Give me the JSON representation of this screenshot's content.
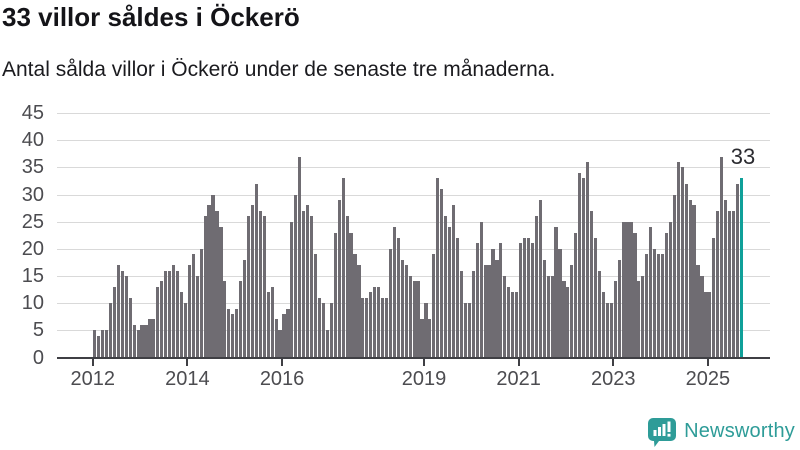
{
  "header": {
    "title": "33 villor såldes i Öckerö",
    "subtitle": "Antal sålda villor i Öckerö under de senaste tre månaderna."
  },
  "annotation": {
    "last_value_label": "33"
  },
  "branding": {
    "wordmark": "Newsworthy",
    "icon": "newsworthy-speech-bubble-barchart-icon",
    "color": "#2e9c98"
  },
  "chart_data": {
    "type": "bar",
    "title": "33 villor såldes i Öckerö",
    "subtitle": "Antal sålda villor i Öckerö under de senaste tre månaderna.",
    "x_start_month": "2012-01",
    "x_end_month": "2025-09",
    "x_tick_years": [
      2012,
      2014,
      2016,
      2019,
      2021,
      2023,
      2025
    ],
    "y_ticks": [
      0,
      5,
      10,
      15,
      20,
      25,
      30,
      35,
      40,
      45
    ],
    "ylim": [
      0,
      45
    ],
    "grid": true,
    "bar_color": "#6f6c72",
    "highlight_color": "#0fa099",
    "highlight_last_bar": true,
    "highlight_value": 33,
    "values": [
      5,
      4,
      5,
      5,
      10,
      13,
      17,
      16,
      15,
      11,
      6,
      5,
      6,
      6,
      7,
      7,
      13,
      14,
      16,
      16,
      17,
      16,
      12,
      10,
      17,
      19,
      15,
      20,
      26,
      28,
      30,
      27,
      24,
      14,
      9,
      8,
      9,
      14,
      18,
      26,
      28,
      32,
      27,
      26,
      12,
      13,
      7,
      5,
      8,
      9,
      25,
      30,
      37,
      27,
      28,
      26,
      19,
      11,
      10,
      5,
      10,
      23,
      29,
      33,
      26,
      23,
      19,
      17,
      11,
      11,
      12,
      13,
      13,
      11,
      11,
      20,
      24,
      22,
      18,
      17,
      15,
      14,
      14,
      7,
      10,
      7,
      19,
      33,
      31,
      26,
      24,
      28,
      22,
      16,
      10,
      10,
      16,
      21,
      25,
      17,
      17,
      20,
      18,
      21,
      15,
      13,
      12,
      12,
      21,
      22,
      22,
      21,
      26,
      29,
      18,
      15,
      15,
      24,
      20,
      14,
      13,
      17,
      23,
      34,
      33,
      36,
      27,
      22,
      16,
      12,
      10,
      10,
      14,
      18,
      25,
      25,
      25,
      23,
      14,
      15,
      19,
      24,
      20,
      19,
      19,
      23,
      25,
      30,
      36,
      35,
      32,
      29,
      28,
      17,
      15,
      12,
      12,
      22,
      27,
      37,
      29,
      27,
      27,
      32,
      33
    ]
  }
}
